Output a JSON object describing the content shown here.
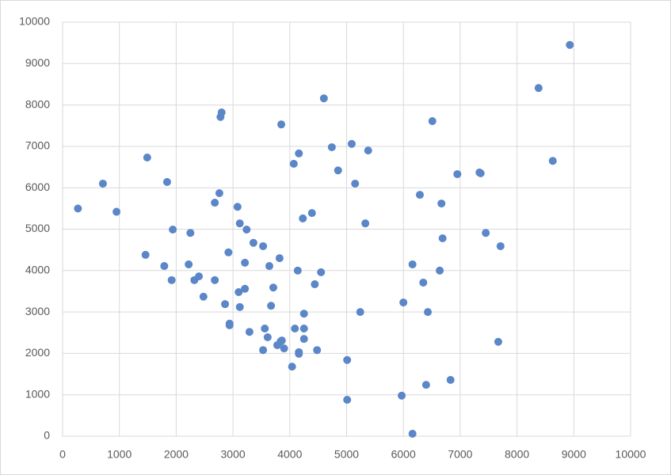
{
  "chart_data": {
    "type": "scatter",
    "color": "#5b86c8",
    "grid": true,
    "xlim": [
      0,
      10000
    ],
    "ylim": [
      0,
      10000
    ],
    "xticks": [
      0,
      1000,
      2000,
      3000,
      4000,
      5000,
      6000,
      7000,
      8000,
      9000,
      10000
    ],
    "yticks": [
      0,
      1000,
      2000,
      3000,
      4000,
      5000,
      6000,
      7000,
      8000,
      9000,
      10000
    ],
    "x": [
      270,
      710,
      950,
      1490,
      1460,
      1790,
      1840,
      1940,
      1920,
      2220,
      2250,
      2320,
      2400,
      2480,
      2680,
      2680,
      2760,
      2780,
      2800,
      2920,
      2860,
      2940,
      2940,
      3080,
      3120,
      3240,
      3100,
      3120,
      3210,
      3210,
      3290,
      3360,
      3530,
      3560,
      3530,
      3610,
      3640,
      3710,
      3670,
      3780,
      3840,
      3860,
      3820,
      3850,
      3900,
      4040,
      4070,
      4090,
      4140,
      4160,
      4160,
      4160,
      4230,
      4250,
      4250,
      4250,
      4390,
      4440,
      4480,
      4550,
      4600,
      4740,
      4850,
      5010,
      5010,
      5090,
      5150,
      5240,
      5330,
      5380,
      5970,
      6000,
      6160,
      6160,
      6290,
      6350,
      6400,
      6430,
      6510,
      6640,
      6670,
      6690,
      6830,
      6950,
      7340,
      7360,
      7450,
      7670,
      7710,
      8380,
      8630,
      8930
    ],
    "y": [
      5500,
      6100,
      5420,
      6730,
      4380,
      4110,
      6140,
      4990,
      3770,
      4150,
      4910,
      3770,
      3860,
      3370,
      3770,
      5640,
      5870,
      7710,
      7820,
      4440,
      3190,
      2720,
      2680,
      5540,
      5140,
      4990,
      3480,
      3120,
      4190,
      3560,
      2520,
      4670,
      4590,
      2600,
      2080,
      2390,
      4110,
      3590,
      3150,
      2200,
      2290,
      2310,
      4300,
      7530,
      2120,
      1680,
      6580,
      2600,
      4000,
      6830,
      2030,
      1990,
      5260,
      2960,
      2600,
      2350,
      5390,
      3670,
      2080,
      3960,
      8160,
      6980,
      6420,
      1840,
      880,
      7060,
      6100,
      3000,
      5140,
      6900,
      980,
      3230,
      4150,
      60,
      5830,
      3710,
      1240,
      3000,
      7610,
      4000,
      5620,
      4780,
      1360,
      6330,
      6370,
      6350,
      4910,
      2280,
      4590,
      8410,
      6650,
      9450
    ]
  }
}
